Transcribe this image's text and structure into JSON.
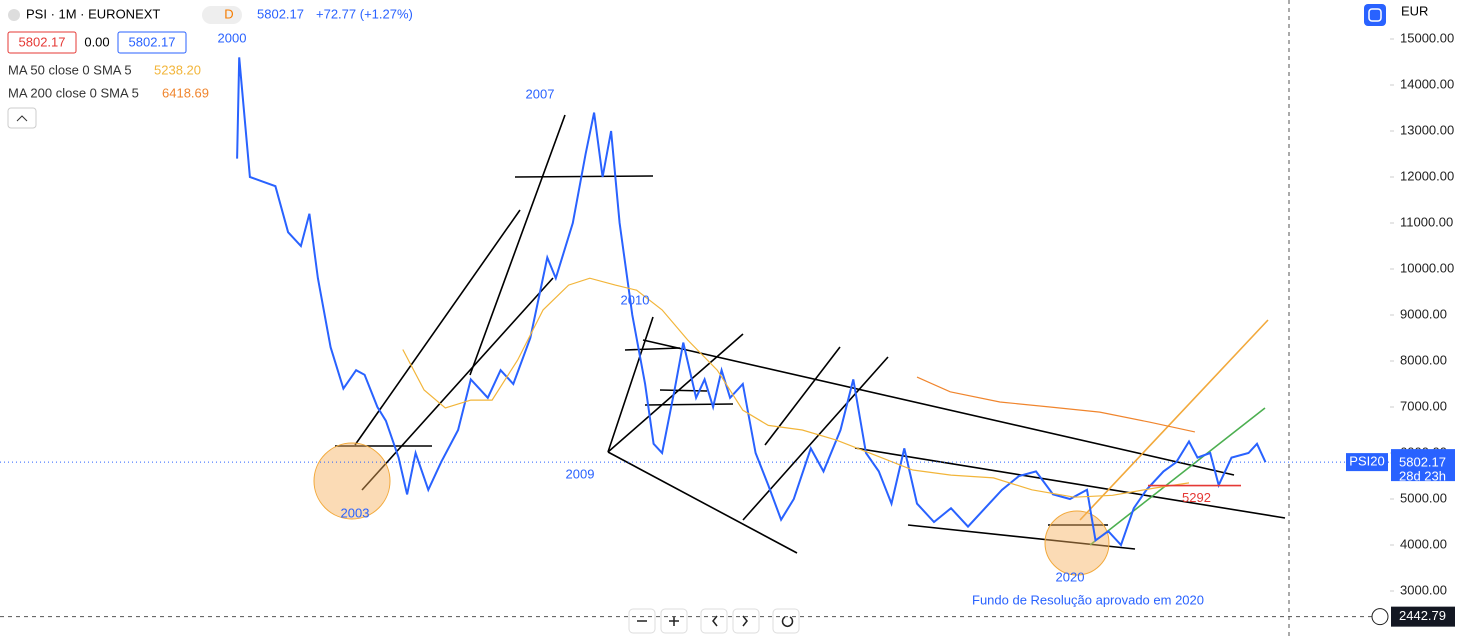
{
  "header": {
    "symbol": "PSI · 1M · EURONEXT",
    "badge": "D",
    "last": "5802.17",
    "change": "+72.77 (+1.27%)",
    "bid": "5802.17",
    "spread": "0.00",
    "ask": "5802.17",
    "currency": "EUR"
  },
  "indicators": [
    {
      "name": "MA 50 close 0 SMA 5",
      "value": "5238.20"
    },
    {
      "name": "MA 200 close 0 SMA 5",
      "value": "6418.69"
    }
  ],
  "price_scale": {
    "symbol_tag": "PSI20",
    "last": 5802.17,
    "countdown": "28d 23h",
    "crosshair": 2442.79,
    "level": 5292
  },
  "chart_data": {
    "type": "line",
    "annotations": [
      "2000",
      "2003",
      "2007",
      "2009",
      "2010",
      "2020",
      "Fundo de Resolução aprovado em 2020"
    ],
    "xlim": [
      1994.42,
      2027.13
    ],
    "ylim": [
      2022,
      15848
    ],
    "yticks": [
      {
        "value": 15000,
        "label": "15000.00"
      },
      {
        "value": 14000,
        "label": "14000.00"
      },
      {
        "value": 13000,
        "label": "13000.00"
      },
      {
        "value": 12000,
        "label": "12000.00"
      },
      {
        "value": 11000,
        "label": "11000.00"
      },
      {
        "value": 10000,
        "label": "10000.00"
      },
      {
        "value": 9000,
        "label": "9000.00"
      },
      {
        "value": 8000,
        "label": "8000.00"
      },
      {
        "value": 7000,
        "label": "7000.00"
      },
      {
        "value": 6000,
        "label": "6000.00"
      },
      {
        "value": 5000,
        "label": "5000.00"
      },
      {
        "value": 4000,
        "label": "4000.00"
      },
      {
        "value": 3000,
        "label": "3000.00"
      }
    ],
    "series": [
      {
        "name": "PSI",
        "color": "#2962ff",
        "x": [
          2000.0,
          2000.05,
          2000.3,
          2000.6,
          2000.9,
          2001.2,
          2001.5,
          2001.7,
          2001.9,
          2002.2,
          2002.5,
          2002.8,
          2003.0,
          2003.3,
          2003.5,
          2003.8,
          2004.0,
          2004.2,
          2004.5,
          2004.8,
          2005.2,
          2005.5,
          2005.9,
          2006.2,
          2006.5,
          2006.9,
          2007.3,
          2007.5,
          2007.9,
          2008.2,
          2008.4,
          2008.6,
          2008.8,
          2009.0,
          2009.3,
          2009.6,
          2009.8,
          2010.0,
          2010.3,
          2010.5,
          2010.8,
          2011.0,
          2011.2,
          2011.4,
          2011.6,
          2011.9,
          2012.2,
          2012.5,
          2012.8,
          2013.1,
          2013.5,
          2013.8,
          2014.2,
          2014.5,
          2014.8,
          2015.1,
          2015.4,
          2015.7,
          2016.0,
          2016.4,
          2016.8,
          2017.2,
          2017.6,
          2018.0,
          2018.4,
          2018.8,
          2019.2,
          2019.6,
          2020.0,
          2020.2,
          2020.5,
          2020.8,
          2021.1,
          2021.4,
          2021.8,
          2022.1,
          2022.4,
          2022.6,
          2022.9,
          2023.1,
          2023.4,
          2023.8,
          2024.0,
          2024.2
        ],
        "values": [
          12400,
          14600,
          12000,
          11900,
          11800,
          10800,
          10500,
          11200,
          9800,
          8300,
          7400,
          7800,
          7700,
          7000,
          6700,
          5900,
          5100,
          6000,
          5200,
          5800,
          6500,
          7600,
          7200,
          7800,
          7500,
          8500,
          10250,
          9800,
          11000,
          12500,
          13400,
          12000,
          13000,
          11000,
          9000,
          7500,
          6200,
          6000,
          7400,
          8400,
          7200,
          7600,
          7000,
          7800,
          7200,
          7500,
          6000,
          5300,
          4550,
          5000,
          6100,
          5600,
          6500,
          7600,
          6000,
          5600,
          4900,
          6100,
          4900,
          4500,
          4800,
          4400,
          4800,
          5200,
          5500,
          5600,
          5100,
          5000,
          5200,
          4100,
          4300,
          4000,
          4800,
          5200,
          5600,
          5800,
          6250,
          5900,
          6000,
          5300,
          5900,
          6000,
          6200,
          5800
        ]
      },
      {
        "name": "MA 50",
        "color": "#f2b53a",
        "x": [
          2003.9,
          2004.4,
          2004.9,
          2005.5,
          2006.0,
          2006.6,
          2007.2,
          2007.8,
          2008.3,
          2008.9,
          2009.4,
          2010.0,
          2010.6,
          2011.3,
          2011.9,
          2012.5,
          2013.3,
          2014.1,
          2015.0,
          2015.9,
          2016.8,
          2017.8,
          2018.7,
          2019.7,
          2020.6,
          2021.6,
          2022.4
        ],
        "values": [
          8250,
          7370,
          6980,
          7150,
          7150,
          8020,
          9110,
          9650,
          9800,
          9650,
          9540,
          9110,
          8460,
          7800,
          6930,
          6600,
          6500,
          6280,
          5960,
          5630,
          5520,
          5460,
          5200,
          5040,
          5080,
          5240,
          5350
        ]
      },
      {
        "name": "MA 200",
        "color": "#f0852d",
        "x": [
          2016.0,
          2016.78,
          2017.95,
          2019.13,
          2020.3,
          2021.48,
          2022.54
        ],
        "values": [
          7650,
          7330,
          7110,
          7000,
          6890,
          6670,
          6460
        ]
      }
    ]
  }
}
